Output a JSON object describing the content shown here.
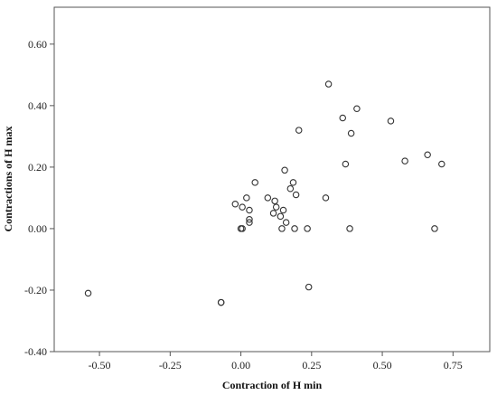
{
  "chart_data": {
    "type": "scatter",
    "title": "",
    "xlabel": "Contraction of H min",
    "ylabel": "Contractions of H max",
    "xlim": [
      -0.66,
      0.88
    ],
    "ylim": [
      -0.4,
      0.72
    ],
    "xticks": [
      -0.5,
      -0.25,
      0.0,
      0.25,
      0.5,
      0.75
    ],
    "yticks": [
      -0.4,
      -0.2,
      0.0,
      0.2,
      0.4,
      0.6
    ],
    "xtick_labels": [
      "-0.50",
      "-0.25",
      "0.00",
      "0.25",
      "0.50",
      "0.75"
    ],
    "ytick_labels": [
      "-0.40",
      "-0.20",
      "0.00",
      "0.20",
      "0.40",
      "0.60"
    ],
    "grid": false,
    "legend": "none",
    "marker": "open-circle",
    "points": [
      {
        "x": -0.54,
        "y": -0.21
      },
      {
        "x": -0.07,
        "y": -0.24
      },
      {
        "x": -0.07,
        "y": -0.24
      },
      {
        "x": -0.02,
        "y": 0.08
      },
      {
        "x": 0.0,
        "y": 0.0
      },
      {
        "x": 0.005,
        "y": 0.0
      },
      {
        "x": 0.005,
        "y": 0.07
      },
      {
        "x": 0.02,
        "y": 0.1
      },
      {
        "x": 0.03,
        "y": 0.06
      },
      {
        "x": 0.03,
        "y": 0.03
      },
      {
        "x": 0.03,
        "y": 0.02
      },
      {
        "x": 0.05,
        "y": 0.15
      },
      {
        "x": 0.095,
        "y": 0.1
      },
      {
        "x": 0.115,
        "y": 0.05
      },
      {
        "x": 0.12,
        "y": 0.09
      },
      {
        "x": 0.125,
        "y": 0.07
      },
      {
        "x": 0.14,
        "y": 0.04
      },
      {
        "x": 0.145,
        "y": 0.0
      },
      {
        "x": 0.15,
        "y": 0.06
      },
      {
        "x": 0.155,
        "y": 0.19
      },
      {
        "x": 0.16,
        "y": 0.02
      },
      {
        "x": 0.175,
        "y": 0.13
      },
      {
        "x": 0.185,
        "y": 0.15
      },
      {
        "x": 0.19,
        "y": 0.0
      },
      {
        "x": 0.195,
        "y": 0.11
      },
      {
        "x": 0.205,
        "y": 0.32
      },
      {
        "x": 0.235,
        "y": 0.0
      },
      {
        "x": 0.24,
        "y": -0.19
      },
      {
        "x": 0.3,
        "y": 0.1
      },
      {
        "x": 0.31,
        "y": 0.47
      },
      {
        "x": 0.36,
        "y": 0.36
      },
      {
        "x": 0.37,
        "y": 0.21
      },
      {
        "x": 0.385,
        "y": 0.0
      },
      {
        "x": 0.39,
        "y": 0.31
      },
      {
        "x": 0.41,
        "y": 0.39
      },
      {
        "x": 0.53,
        "y": 0.35
      },
      {
        "x": 0.58,
        "y": 0.22
      },
      {
        "x": 0.66,
        "y": 0.24
      },
      {
        "x": 0.685,
        "y": 0.0
      },
      {
        "x": 0.71,
        "y": 0.21
      }
    ]
  }
}
